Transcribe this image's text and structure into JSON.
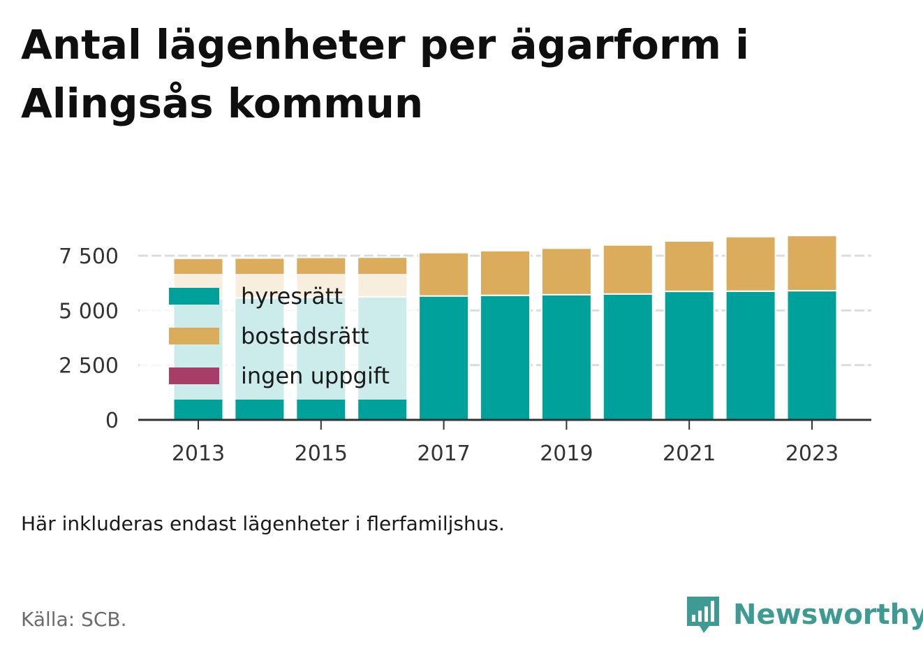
{
  "title": "Antal lägenheter per ägarform i Alingsås kommun",
  "note": "Här inkluderas endast lägenheter i flerfamiljshus.",
  "source": "Källa: SCB.",
  "brand": {
    "name": "Newsworthy",
    "icon": "newsworthy-chart-bubble-icon",
    "color": "#3d9b93"
  },
  "chart_data": {
    "type": "bar",
    "stacked": true,
    "categories": [
      "2013",
      "2014",
      "2015",
      "2016",
      "2017",
      "2018",
      "2019",
      "2020",
      "2021",
      "2022",
      "2023"
    ],
    "x_tick_labels": [
      "2013",
      "2015",
      "2017",
      "2019",
      "2021",
      "2023"
    ],
    "series": [
      {
        "name": "hyresrätt",
        "color": "#00a19a",
        "values": [
          5550,
          5570,
          5600,
          5620,
          5660,
          5690,
          5720,
          5750,
          5870,
          5880,
          5900
        ]
      },
      {
        "name": "bostadsrätt",
        "color": "#dbac5b",
        "values": [
          1830,
          1820,
          1820,
          1810,
          1980,
          2040,
          2120,
          2240,
          2300,
          2490,
          2520
        ]
      },
      {
        "name": "ingen uppgift",
        "color": "#a63e67",
        "values": [
          0,
          0,
          0,
          0,
          0,
          0,
          0,
          0,
          0,
          0,
          0
        ]
      }
    ],
    "y_ticks": [
      {
        "value": 0,
        "label": "0"
      },
      {
        "value": 2500,
        "label": "2 500"
      },
      {
        "value": 5000,
        "label": "5 000"
      },
      {
        "value": 7500,
        "label": "7 500"
      }
    ],
    "ylim": [
      0,
      7500
    ],
    "grid": true,
    "legend_position": "top-left-inside"
  }
}
